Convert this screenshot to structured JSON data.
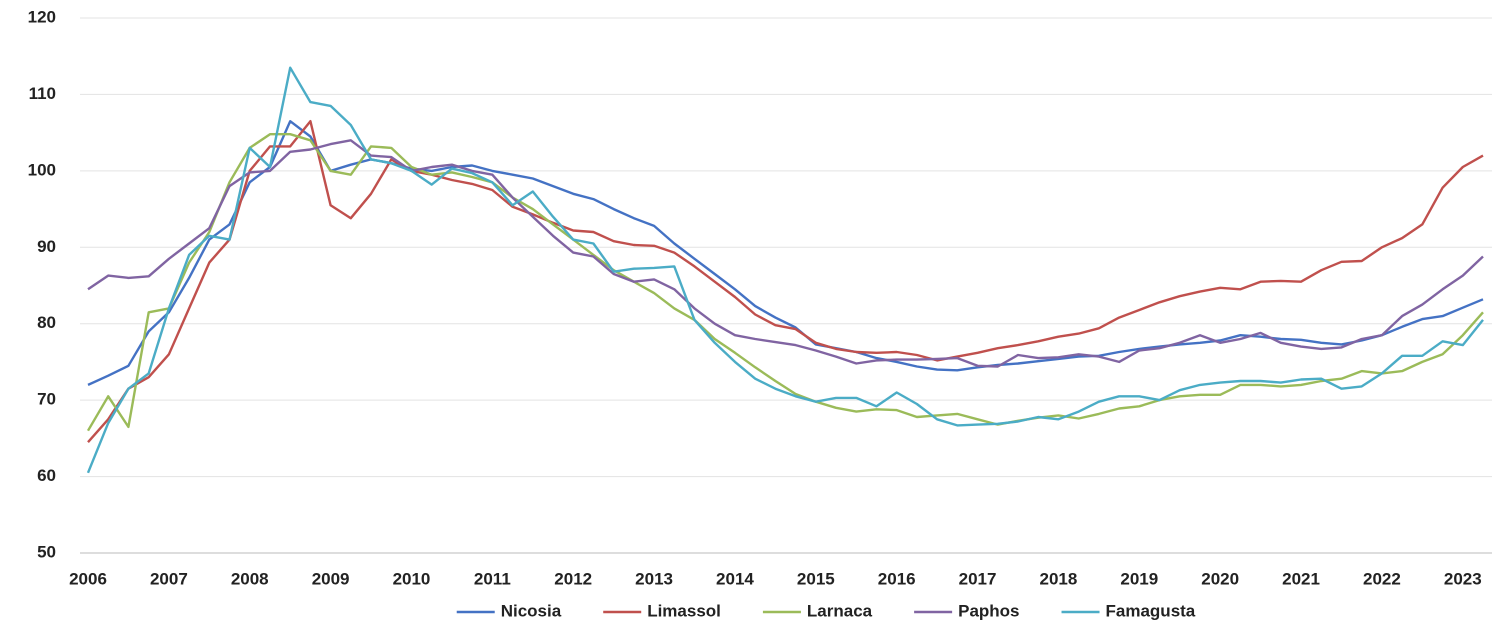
{
  "chart_data": {
    "type": "line",
    "categories": [
      "2006",
      null,
      null,
      null,
      "2007",
      null,
      null,
      null,
      "2008",
      null,
      null,
      null,
      "2009",
      null,
      null,
      null,
      "2010",
      null,
      null,
      null,
      "2011",
      null,
      null,
      null,
      "2012",
      null,
      null,
      null,
      "2013",
      null,
      null,
      null,
      "2014",
      null,
      null,
      null,
      "2015",
      null,
      null,
      null,
      "2016",
      null,
      null,
      null,
      "2017",
      null,
      null,
      null,
      "2018",
      null,
      null,
      null,
      "2019",
      null,
      null,
      null,
      "2020",
      null,
      null,
      null,
      "2021",
      null,
      null,
      null,
      "2022",
      null,
      null,
      null,
      "2023",
      null
    ],
    "series": [
      {
        "name": "Nicosia",
        "color": "#4472c4",
        "values": [
          72,
          73.2,
          74.5,
          79,
          81.5,
          86,
          91,
          93,
          98.5,
          100.5,
          106.5,
          104.5,
          100,
          100.8,
          101.5,
          101,
          100.3,
          100,
          100.5,
          100.7,
          100,
          99.5,
          99,
          98,
          97,
          96.3,
          95,
          93.8,
          92.8,
          90.5,
          88.5,
          86.5,
          84.5,
          82.3,
          80.8,
          79.5,
          77.3,
          76.8,
          76.3,
          75.5,
          75,
          74.4,
          74,
          73.9,
          74.3,
          74.6,
          74.8,
          75.1,
          75.4,
          75.7,
          75.8,
          76.3,
          76.7,
          77,
          77.3,
          77.5,
          77.8,
          78.5,
          78.3,
          78,
          77.9,
          77.5,
          77.3,
          77.8,
          78.5,
          79.6,
          80.6,
          81,
          82.1,
          83.2
        ]
      },
      {
        "name": "Limassol",
        "color": "#c0504d",
        "values": [
          64.5,
          67.5,
          71.5,
          73,
          76,
          82,
          88,
          91,
          100,
          103.2,
          103.2,
          106.5,
          95.5,
          93.8,
          97,
          101.5,
          100,
          99.5,
          98.8,
          98.3,
          97.5,
          95.3,
          94.3,
          93.2,
          92.2,
          92,
          90.8,
          90.3,
          90.2,
          89.3,
          87.5,
          85.5,
          83.5,
          81.2,
          79.8,
          79.3,
          77.5,
          76.7,
          76.3,
          76.2,
          76.3,
          75.9,
          75.2,
          75.7,
          76.2,
          76.8,
          77.2,
          77.7,
          78.3,
          78.7,
          79.4,
          80.8,
          81.8,
          82.8,
          83.6,
          84.2,
          84.7,
          84.5,
          85.5,
          85.6,
          85.5,
          87,
          88.1,
          88.2,
          90,
          91.2,
          93,
          97.8,
          100.5,
          102
        ]
      },
      {
        "name": "Larnaca",
        "color": "#9bbb59",
        "values": [
          66,
          70.5,
          66.5,
          81.5,
          82,
          88,
          92,
          98.5,
          103,
          104.8,
          104.8,
          104,
          100,
          99.5,
          103.2,
          103,
          100.5,
          99.5,
          99.8,
          99.2,
          98.5,
          96.5,
          95,
          93,
          91,
          89,
          87,
          85.5,
          84,
          82,
          80.5,
          78,
          76.2,
          74.3,
          72.5,
          70.8,
          69.8,
          69,
          68.5,
          68.8,
          68.7,
          67.8,
          68,
          68.2,
          67.5,
          66.8,
          67.3,
          67.7,
          68,
          67.6,
          68.2,
          68.9,
          69.2,
          70,
          70.5,
          70.7,
          70.7,
          72,
          72,
          71.8,
          72,
          72.5,
          72.8,
          73.8,
          73.5,
          73.8,
          75,
          76,
          78.5,
          81.5
        ]
      },
      {
        "name": "Paphos",
        "color": "#8064a2",
        "values": [
          84.5,
          86.3,
          86,
          86.2,
          88.5,
          90.5,
          92.5,
          98,
          99.8,
          100,
          102.5,
          102.8,
          103.5,
          104,
          102,
          101.8,
          100,
          100.5,
          100.8,
          100,
          99.5,
          96.5,
          94,
          91.5,
          89.3,
          88.8,
          86.5,
          85.5,
          85.8,
          84.5,
          82,
          80,
          78.5,
          78,
          77.6,
          77.2,
          76.5,
          75.7,
          74.8,
          75.2,
          75.3,
          75.3,
          75.4,
          75.5,
          74.5,
          74.4,
          75.9,
          75.5,
          75.6,
          76,
          75.7,
          75,
          76.5,
          76.8,
          77.5,
          78.5,
          77.5,
          78,
          78.8,
          77.5,
          77,
          76.7,
          76.9,
          78,
          78.5,
          81,
          82.5,
          84.5,
          86.3,
          88.8
        ]
      },
      {
        "name": "Famagusta",
        "color": "#4bacc6",
        "values": [
          60.5,
          67,
          71.5,
          73.5,
          82,
          89,
          91.5,
          91,
          103,
          100.5,
          113.5,
          109,
          108.5,
          106,
          101.5,
          101,
          100,
          98.2,
          100.3,
          99.7,
          98.5,
          95.5,
          97.3,
          94,
          91,
          90.5,
          86.8,
          87.2,
          87.3,
          87.5,
          80.5,
          77.5,
          75,
          72.8,
          71.5,
          70.5,
          69.8,
          70.3,
          70.3,
          69.2,
          71,
          69.5,
          67.5,
          66.7,
          66.8,
          66.9,
          67.2,
          67.8,
          67.5,
          68.5,
          69.8,
          70.5,
          70.5,
          70,
          71.3,
          72,
          72.3,
          72.5,
          72.5,
          72.3,
          72.7,
          72.8,
          71.5,
          71.8,
          73.5,
          75.8,
          75.8,
          77.7,
          77.2,
          80.5
        ]
      }
    ],
    "ylim": [
      50,
      120
    ],
    "yticks": [
      50,
      60,
      70,
      80,
      90,
      100,
      110,
      120
    ],
    "grid": true,
    "legend": "bottom"
  }
}
